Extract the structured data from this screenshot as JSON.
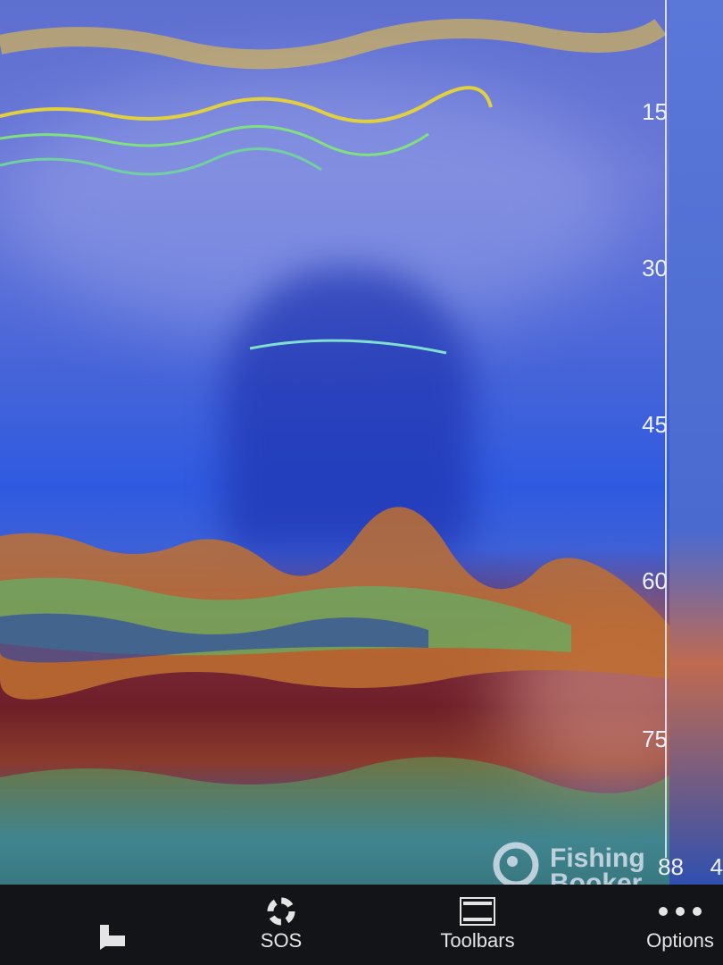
{
  "sonar": {
    "depth_labels": [
      "15",
      "30",
      "45",
      "60",
      "75",
      "88"
    ],
    "extra_label": "4"
  },
  "watermark": {
    "line1": "Fishing",
    "line2": "Booker"
  },
  "toolbar": {
    "items": [
      {
        "label": "",
        "icon": "waypoint-flag-icon"
      },
      {
        "label": "SOS",
        "icon": "lifebuoy-icon"
      },
      {
        "label": "Toolbars",
        "icon": "toolbars-icon"
      },
      {
        "label": "Options",
        "icon": "more-dots-icon"
      }
    ]
  },
  "colors": {
    "water": "#4a66d8",
    "bottom": "#6e1f28",
    "toolbar": "#121418"
  }
}
